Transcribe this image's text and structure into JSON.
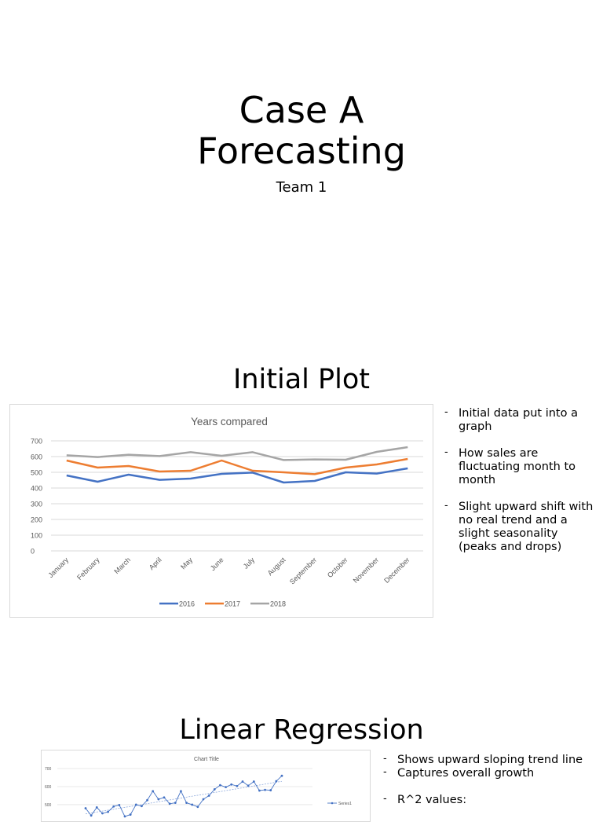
{
  "slides": [
    {
      "title_lines": [
        "Case A",
        "Forecasting"
      ],
      "subtitle": "Team 1"
    },
    {
      "title": "Initial Plot",
      "bullets": [
        "Initial data put into a graph",
        "How sales are fluctuating month to month",
        "Slight upward shift with no real trend and a slight seasonality (peaks and drops)"
      ]
    },
    {
      "title": "Linear Regression",
      "bullets": [
        "Shows upward sloping trend line",
        "Captures overall growth",
        "R^2 values:"
      ]
    }
  ],
  "chart_data": [
    {
      "type": "line",
      "title": "Years compared",
      "categories": [
        "January",
        "February",
        "March",
        "April",
        "May",
        "June",
        "July",
        "August",
        "September",
        "October",
        "November",
        "December"
      ],
      "series": [
        {
          "name": "2016",
          "color": "#4472c4",
          "values": [
            480,
            440,
            485,
            452,
            460,
            490,
            498,
            435,
            445,
            500,
            492,
            525
          ]
        },
        {
          "name": "2017",
          "color": "#ed7d31",
          "values": [
            575,
            530,
            540,
            505,
            510,
            575,
            510,
            500,
            488,
            530,
            550,
            585
          ]
        },
        {
          "name": "2018",
          "color": "#a5a5a5",
          "values": [
            608,
            597,
            612,
            603,
            628,
            605,
            628,
            578,
            582,
            580,
            630,
            660
          ]
        }
      ],
      "ylim": [
        0,
        700
      ],
      "yticks": [
        "0",
        "100",
        "200",
        "300",
        "400",
        "500",
        "600",
        "700"
      ],
      "grid": true,
      "legend": "bottom"
    },
    {
      "type": "line",
      "title": "Chart Title",
      "series": [
        {
          "name": "Series1",
          "color": "#4472c4",
          "values": [
            480,
            440,
            485,
            452,
            460,
            490,
            498,
            435,
            445,
            500,
            492,
            525,
            575,
            530,
            540,
            505,
            510,
            575,
            510,
            500,
            488,
            530,
            550,
            585,
            608,
            597,
            612,
            603,
            628,
            605,
            628,
            578,
            582,
            580,
            630,
            660
          ]
        }
      ],
      "trendline": true,
      "ylim": [
        0,
        700
      ],
      "yticks": [
        "400",
        "500",
        "600",
        "700"
      ],
      "legend": "right"
    }
  ]
}
